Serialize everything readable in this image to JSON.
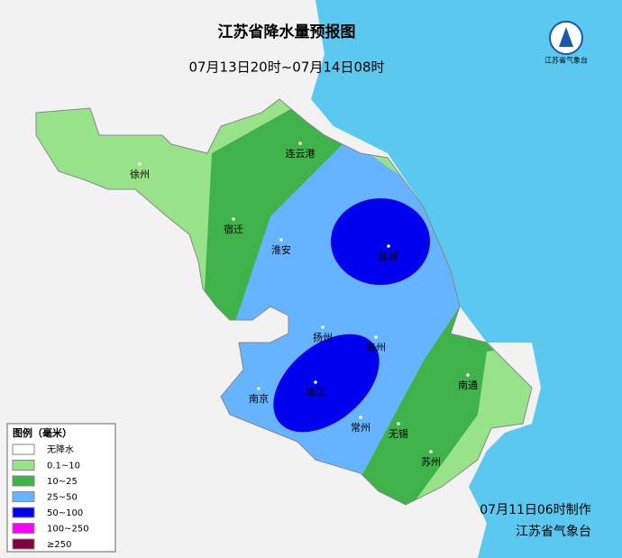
{
  "header": {
    "title": "江苏省降水量预报图",
    "subtitle": "07月13日20时~07月14日08时"
  },
  "logo": {
    "text": "江苏省气象台"
  },
  "legend": {
    "title": "图例（毫米）",
    "items": [
      {
        "label": "无降水",
        "color": "#ffffff"
      },
      {
        "label": "0.1~10",
        "color": "#98e38a"
      },
      {
        "label": "10~25",
        "color": "#3fb34a"
      },
      {
        "label": "25~50",
        "color": "#66b3ff"
      },
      {
        "label": "50~100",
        "color": "#0000ee"
      },
      {
        "label": "100~250",
        "color": "#ff00ff"
      },
      {
        "label": "≥250",
        "color": "#800040"
      }
    ]
  },
  "cities": [
    {
      "name": "徐州"
    },
    {
      "name": "连云港"
    },
    {
      "name": "宿迁"
    },
    {
      "name": "淮安"
    },
    {
      "name": "盐城"
    },
    {
      "name": "扬州"
    },
    {
      "name": "泰州"
    },
    {
      "name": "南通"
    },
    {
      "name": "南京"
    },
    {
      "name": "镇江"
    },
    {
      "name": "常州"
    },
    {
      "name": "无锡"
    },
    {
      "name": "苏州"
    }
  ],
  "footer": {
    "made": "07月11日06时制作",
    "agency": "江苏省气象台"
  }
}
